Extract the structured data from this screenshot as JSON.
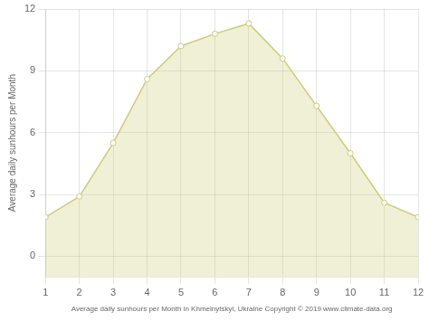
{
  "chart_data": {
    "type": "area",
    "xlabel": "Average daily sunhours per Month in Khmelnytskyi, Ukraine Copyright © 2019 www.climate-data.org",
    "ylabel": "Average daily sunhours per Month",
    "x": [
      1,
      2,
      3,
      4,
      5,
      6,
      7,
      8,
      9,
      10,
      11,
      12
    ],
    "values": [
      1.9,
      2.9,
      5.5,
      8.6,
      10.2,
      10.8,
      11.3,
      9.6,
      7.3,
      5.0,
      2.6,
      1.9
    ],
    "color": "#CCCC77",
    "marker": "circle",
    "xlim": [
      1,
      12
    ],
    "xticks": [
      1,
      2,
      3,
      4,
      5,
      6,
      7,
      8,
      9,
      10,
      11,
      12
    ],
    "ylim": [
      -1,
      12
    ],
    "yticks": [
      0,
      3,
      6,
      9,
      12
    ],
    "grid": true
  }
}
